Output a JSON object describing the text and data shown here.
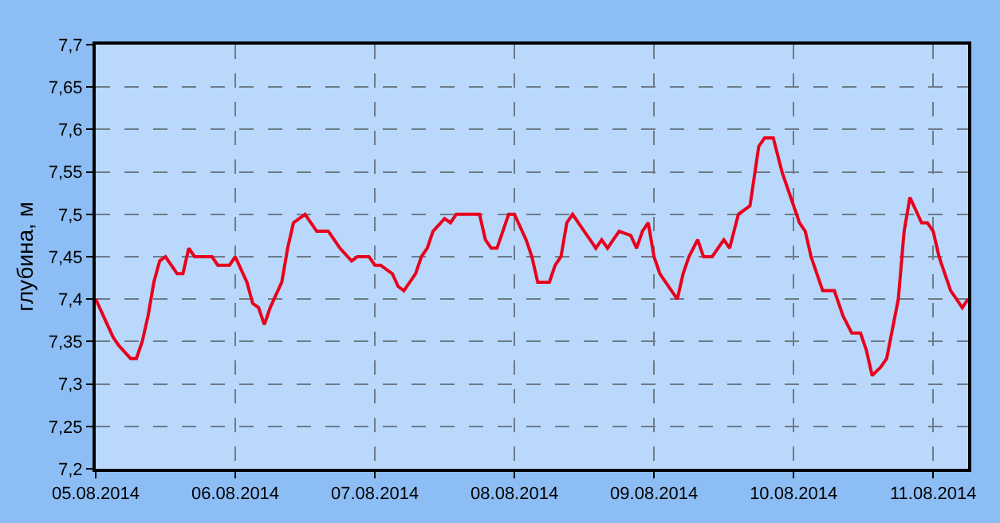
{
  "chart_data": {
    "type": "line",
    "ylabel": "глубина, м",
    "x": [
      "2014-08-05T00:00",
      "2014-08-05T02:00",
      "2014-08-05T03:00",
      "2014-08-05T04:00",
      "2014-08-05T06:00",
      "2014-08-05T07:00",
      "2014-08-05T08:00",
      "2014-08-05T09:00",
      "2014-08-05T10:00",
      "2014-08-05T11:00",
      "2014-08-05T12:00",
      "2014-08-05T13:00",
      "2014-08-05T14:00",
      "2014-08-05T15:00",
      "2014-08-05T16:00",
      "2014-08-05T17:00",
      "2014-08-05T19:00",
      "2014-08-05T20:00",
      "2014-08-05T21:00",
      "2014-08-05T23:00",
      "2014-08-06T00:00",
      "2014-08-06T02:00",
      "2014-08-06T03:00",
      "2014-08-06T04:00",
      "2014-08-06T05:00",
      "2014-08-06T06:00",
      "2014-08-06T08:00",
      "2014-08-06T09:00",
      "2014-08-06T10:00",
      "2014-08-06T12:00",
      "2014-08-06T13:00",
      "2014-08-06T14:00",
      "2014-08-06T16:00",
      "2014-08-06T17:00",
      "2014-08-06T18:00",
      "2014-08-06T20:00",
      "2014-08-06T21:00",
      "2014-08-06T23:00",
      "2014-08-07T00:00",
      "2014-08-07T01:00",
      "2014-08-07T03:00",
      "2014-08-07T04:00",
      "2014-08-07T05:00",
      "2014-08-07T07:00",
      "2014-08-07T08:00",
      "2014-08-07T09:00",
      "2014-08-07T10:00",
      "2014-08-07T12:00",
      "2014-08-07T13:00",
      "2014-08-07T14:00",
      "2014-08-07T16:00",
      "2014-08-07T18:00",
      "2014-08-07T19:00",
      "2014-08-07T20:00",
      "2014-08-07T21:00",
      "2014-08-07T22:00",
      "2014-08-07T23:00",
      "2014-08-08T00:00",
      "2014-08-08T02:00",
      "2014-08-08T03:00",
      "2014-08-08T04:00",
      "2014-08-08T06:00",
      "2014-08-08T07:00",
      "2014-08-08T08:00",
      "2014-08-08T09:00",
      "2014-08-08T10:00",
      "2014-08-08T12:00",
      "2014-08-08T13:00",
      "2014-08-08T14:00",
      "2014-08-08T15:00",
      "2014-08-08T16:00",
      "2014-08-08T17:00",
      "2014-08-08T18:00",
      "2014-08-08T20:00",
      "2014-08-08T21:00",
      "2014-08-08T22:00",
      "2014-08-08T23:00",
      "2014-08-09T00:00",
      "2014-08-09T01:00",
      "2014-08-09T03:00",
      "2014-08-09T04:00",
      "2014-08-09T05:00",
      "2014-08-09T06:00",
      "2014-08-09T07:30",
      "2014-08-09T08:30",
      "2014-08-09T10:00",
      "2014-08-09T12:00",
      "2014-08-09T13:00",
      "2014-08-09T14:30",
      "2014-08-09T16:30",
      "2014-08-09T18:00",
      "2014-08-09T19:00",
      "2014-08-09T20:30",
      "2014-08-09T22:00",
      "2014-08-09T23:30",
      "2014-08-10T01:00",
      "2014-08-10T02:00",
      "2014-08-10T03:00",
      "2014-08-10T04:00",
      "2014-08-10T05:00",
      "2014-08-10T07:00",
      "2014-08-10T08:30",
      "2014-08-10T10:00",
      "2014-08-10T11:30",
      "2014-08-10T12:30",
      "2014-08-10T13:30",
      "2014-08-10T15:00",
      "2014-08-10T16:00",
      "2014-08-10T18:00",
      "2014-08-10T19:00",
      "2014-08-10T20:00",
      "2014-08-10T21:00",
      "2014-08-10T22:00",
      "2014-08-10T23:00",
      "2014-08-11T00:00",
      "2014-08-11T01:00",
      "2014-08-11T02:00",
      "2014-08-11T03:00",
      "2014-08-11T04:00",
      "2014-08-11T05:00",
      "2014-08-11T06:00"
    ],
    "series": [
      {
        "color": "#e8001c",
        "values": [
          7.4,
          7.37,
          7.355,
          7.345,
          7.33,
          7.33,
          7.35,
          7.38,
          7.42,
          7.445,
          7.45,
          7.44,
          7.43,
          7.43,
          7.46,
          7.45,
          7.45,
          7.45,
          7.44,
          7.44,
          7.45,
          7.42,
          7.395,
          7.39,
          7.37,
          7.39,
          7.42,
          7.46,
          7.49,
          7.5,
          7.49,
          7.48,
          7.48,
          7.47,
          7.46,
          7.445,
          7.45,
          7.45,
          7.44,
          7.44,
          7.43,
          7.415,
          7.41,
          7.43,
          7.45,
          7.46,
          7.48,
          7.495,
          7.49,
          7.5,
          7.5,
          7.5,
          7.47,
          7.46,
          7.46,
          7.48,
          7.5,
          7.5,
          7.47,
          7.45,
          7.42,
          7.42,
          7.44,
          7.45,
          7.49,
          7.5,
          7.48,
          7.47,
          7.46,
          7.47,
          7.46,
          7.47,
          7.48,
          7.475,
          7.46,
          7.48,
          7.49,
          7.45,
          7.43,
          7.41,
          7.4,
          7.43,
          7.45,
          7.47,
          7.45,
          7.45,
          7.47,
          7.46,
          7.5,
          7.51,
          7.58,
          7.59,
          7.59,
          7.55,
          7.52,
          7.49,
          7.48,
          7.45,
          7.43,
          7.41,
          7.41,
          7.38,
          7.36,
          7.36,
          7.34,
          7.31,
          7.32,
          7.33,
          7.4,
          7.48,
          7.52,
          7.505,
          7.49,
          7.49,
          7.48,
          7.45,
          7.43,
          7.41,
          7.4,
          7.39,
          7.4
        ]
      }
    ],
    "xlim": [
      "2014-08-05T00:00",
      "2014-08-11T06:00"
    ],
    "xticks": [
      {
        "value": "2014-08-05",
        "label": "05.08.2014"
      },
      {
        "value": "2014-08-06",
        "label": "06.08.2014"
      },
      {
        "value": "2014-08-07",
        "label": "07.08.2014"
      },
      {
        "value": "2014-08-08",
        "label": "08.08.2014"
      },
      {
        "value": "2014-08-09",
        "label": "09.08.2014"
      },
      {
        "value": "2014-08-10",
        "label": "10.08.2014"
      },
      {
        "value": "2014-08-11",
        "label": "11.08.2014"
      }
    ],
    "ylim": [
      7.2,
      7.7
    ],
    "yticks": [
      {
        "value": 7.2,
        "label": "7,2"
      },
      {
        "value": 7.25,
        "label": "7,25"
      },
      {
        "value": 7.3,
        "label": "7,3"
      },
      {
        "value": 7.35,
        "label": "7,35"
      },
      {
        "value": 7.4,
        "label": "7,4"
      },
      {
        "value": 7.45,
        "label": "7,45"
      },
      {
        "value": 7.5,
        "label": "7,5"
      },
      {
        "value": 7.55,
        "label": "7,55"
      },
      {
        "value": 7.6,
        "label": "7,6"
      },
      {
        "value": 7.65,
        "label": "7,65"
      },
      {
        "value": 7.7,
        "label": "7,7"
      }
    ],
    "grid": true,
    "marker": "none",
    "line_style": "solid"
  }
}
